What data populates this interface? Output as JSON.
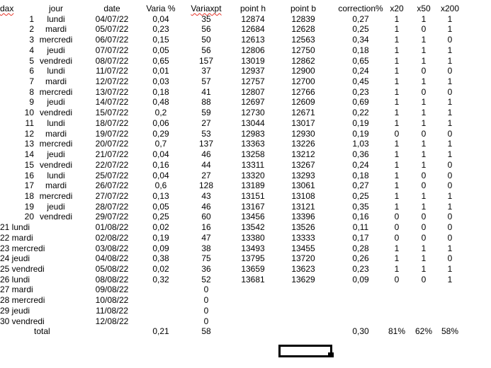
{
  "sheet": {
    "headers": [
      {
        "label": "dax",
        "misspelled": true
      },
      {
        "label": "jour",
        "misspelled": false
      },
      {
        "label": "date",
        "misspelled": false
      },
      {
        "label": "Varia %",
        "misspelled": false
      },
      {
        "label": "Variaxpt",
        "misspelled": true
      },
      {
        "label": "point h",
        "misspelled": false
      },
      {
        "label": "point b",
        "misspelled": false
      },
      {
        "label": "correction%",
        "misspelled": false
      },
      {
        "label": "x20",
        "misspelled": false
      },
      {
        "label": "x50",
        "misspelled": false
      },
      {
        "label": "x200",
        "misspelled": false
      }
    ],
    "rows": [
      {
        "num": "1",
        "jour": "lundi",
        "date": "04/07/22",
        "varia": "0,04",
        "variaxpt": "35",
        "point_h": "12874",
        "point_b": "12839",
        "correction": "0,27",
        "x20": "1",
        "x50": "1",
        "x200": "1",
        "merged": false
      },
      {
        "num": "2",
        "jour": "mardi",
        "date": "05/07/22",
        "varia": "0,23",
        "variaxpt": "56",
        "point_h": "12684",
        "point_b": "12628",
        "correction": "0,25",
        "x20": "1",
        "x50": "0",
        "x200": "1",
        "merged": false
      },
      {
        "num": "3",
        "jour": "mercredi",
        "date": "06/07/22",
        "varia": "0,15",
        "variaxpt": "50",
        "point_h": "12613",
        "point_b": "12563",
        "correction": "0,34",
        "x20": "1",
        "x50": "1",
        "x200": "0",
        "merged": false
      },
      {
        "num": "4",
        "jour": "jeudi",
        "date": "07/07/22",
        "varia": "0,05",
        "variaxpt": "56",
        "point_h": "12806",
        "point_b": "12750",
        "correction": "0,18",
        "x20": "1",
        "x50": "1",
        "x200": "1",
        "merged": false
      },
      {
        "num": "5",
        "jour": "vendredi",
        "date": "08/07/22",
        "varia": "0,65",
        "variaxpt": "157",
        "point_h": "13019",
        "point_b": "12862",
        "correction": "0,65",
        "x20": "1",
        "x50": "1",
        "x200": "1",
        "merged": false
      },
      {
        "num": "6",
        "jour": "lundi",
        "date": "11/07/22",
        "varia": "0,01",
        "variaxpt": "37",
        "point_h": "12937",
        "point_b": "12900",
        "correction": "0,24",
        "x20": "1",
        "x50": "0",
        "x200": "0",
        "merged": false
      },
      {
        "num": "7",
        "jour": "mardi",
        "date": "12/07/22",
        "varia": "0,03",
        "variaxpt": "57",
        "point_h": "12757",
        "point_b": "12700",
        "correction": "0,45",
        "x20": "1",
        "x50": "1",
        "x200": "1",
        "merged": false
      },
      {
        "num": "8",
        "jour": "mercredi",
        "date": "13/07/22",
        "varia": "0,18",
        "variaxpt": "41",
        "point_h": "12807",
        "point_b": "12766",
        "correction": "0,23",
        "x20": "1",
        "x50": "0",
        "x200": "0",
        "merged": false
      },
      {
        "num": "9",
        "jour": "jeudi",
        "date": "14/07/22",
        "varia": "0,48",
        "variaxpt": "88",
        "point_h": "12697",
        "point_b": "12609",
        "correction": "0,69",
        "x20": "1",
        "x50": "1",
        "x200": "1",
        "merged": false
      },
      {
        "num": "10",
        "jour": "vendredi",
        "date": "15/07/22",
        "varia": "0,2",
        "variaxpt": "59",
        "point_h": "12730",
        "point_b": "12671",
        "correction": "0,22",
        "x20": "1",
        "x50": "1",
        "x200": "1",
        "merged": false
      },
      {
        "num": "11",
        "jour": "lundi",
        "date": "18/07/22",
        "varia": "0,06",
        "variaxpt": "27",
        "point_h": "13044",
        "point_b": "13017",
        "correction": "0,19",
        "x20": "1",
        "x50": "1",
        "x200": "1",
        "merged": false
      },
      {
        "num": "12",
        "jour": "mardi",
        "date": "19/07/22",
        "varia": "0,29",
        "variaxpt": "53",
        "point_h": "12983",
        "point_b": "12930",
        "correction": "0,19",
        "x20": "0",
        "x50": "0",
        "x200": "0",
        "merged": false
      },
      {
        "num": "13",
        "jour": "mercredi",
        "date": "20/07/22",
        "varia": "0,7",
        "variaxpt": "137",
        "point_h": "13363",
        "point_b": "13226",
        "correction": "1,03",
        "x20": "1",
        "x50": "1",
        "x200": "1",
        "merged": false
      },
      {
        "num": "14",
        "jour": "jeudi",
        "date": "21/07/22",
        "varia": "0,04",
        "variaxpt": "46",
        "point_h": "13258",
        "point_b": "13212",
        "correction": "0,36",
        "x20": "1",
        "x50": "1",
        "x200": "1",
        "merged": false
      },
      {
        "num": "15",
        "jour": "vendredi",
        "date": "22/07/22",
        "varia": "0,16",
        "variaxpt": "44",
        "point_h": "13311",
        "point_b": "13267",
        "correction": "0,24",
        "x20": "1",
        "x50": "1",
        "x200": "0",
        "merged": false
      },
      {
        "num": "16",
        "jour": "lundi",
        "date": "25/07/22",
        "varia": "0,04",
        "variaxpt": "27",
        "point_h": "13320",
        "point_b": "13293",
        "correction": "0,18",
        "x20": "1",
        "x50": "0",
        "x200": "0",
        "merged": false
      },
      {
        "num": "17",
        "jour": "mardi",
        "date": "26/07/22",
        "varia": "0,6",
        "variaxpt": "128",
        "point_h": "13189",
        "point_b": "13061",
        "correction": "0,27",
        "x20": "1",
        "x50": "0",
        "x200": "0",
        "merged": false
      },
      {
        "num": "18",
        "jour": "mercredi",
        "date": "27/07/22",
        "varia": "0,13",
        "variaxpt": "43",
        "point_h": "13151",
        "point_b": "13108",
        "correction": "0,25",
        "x20": "1",
        "x50": "1",
        "x200": "1",
        "merged": false
      },
      {
        "num": "19",
        "jour": "jeudi",
        "date": "28/07/22",
        "varia": "0,05",
        "variaxpt": "46",
        "point_h": "13167",
        "point_b": "13121",
        "correction": "0,35",
        "x20": "1",
        "x50": "1",
        "x200": "1",
        "merged": false
      },
      {
        "num": "20",
        "jour": "vendredi",
        "date": "29/07/22",
        "varia": "0,25",
        "variaxpt": "60",
        "point_h": "13456",
        "point_b": "13396",
        "correction": "0,16",
        "x20": "0",
        "x50": "0",
        "x200": "0",
        "merged": false
      },
      {
        "num": "21",
        "jour": "lundi",
        "date": "01/08/22",
        "varia": "0,02",
        "variaxpt": "16",
        "point_h": "13542",
        "point_b": "13526",
        "correction": "0,11",
        "x20": "0",
        "x50": "0",
        "x200": "0",
        "merged": true
      },
      {
        "num": "22",
        "jour": "mardi",
        "date": "02/08/22",
        "varia": "0,19",
        "variaxpt": "47",
        "point_h": "13380",
        "point_b": "13333",
        "correction": "0,17",
        "x20": "0",
        "x50": "0",
        "x200": "0",
        "merged": true
      },
      {
        "num": "23",
        "jour": "mercredi",
        "date": "03/08/22",
        "varia": "0,09",
        "variaxpt": "38",
        "point_h": "13493",
        "point_b": "13455",
        "correction": "0,28",
        "x20": "1",
        "x50": "1",
        "x200": "1",
        "merged": true
      },
      {
        "num": "24",
        "jour": "jeudi",
        "date": "04/08/22",
        "varia": "0,38",
        "variaxpt": "75",
        "point_h": "13795",
        "point_b": "13720",
        "correction": "0,26",
        "x20": "1",
        "x50": "1",
        "x200": "0",
        "merged": true
      },
      {
        "num": "25",
        "jour": "vendredi",
        "date": "05/08/22",
        "varia": "0,02",
        "variaxpt": "36",
        "point_h": "13659",
        "point_b": "13623",
        "correction": "0,23",
        "x20": "1",
        "x50": "1",
        "x200": "1",
        "merged": true
      },
      {
        "num": "26",
        "jour": "lundi",
        "date": "08/08/22",
        "varia": "0,32",
        "variaxpt": "52",
        "point_h": "13681",
        "point_b": "13629",
        "correction": "0,09",
        "x20": "0",
        "x50": "0",
        "x200": "1",
        "merged": true
      },
      {
        "num": "27",
        "jour": "mardi",
        "date": "09/08/22",
        "varia": "",
        "variaxpt": "0",
        "point_h": "",
        "point_b": "",
        "correction": "",
        "x20": "",
        "x50": "",
        "x200": "",
        "merged": true
      },
      {
        "num": "28",
        "jour": "mercredi",
        "date": "10/08/22",
        "varia": "",
        "variaxpt": "0",
        "point_h": "",
        "point_b": "",
        "correction": "",
        "x20": "",
        "x50": "",
        "x200": "",
        "merged": true
      },
      {
        "num": "29",
        "jour": "jeudi",
        "date": "11/08/22",
        "varia": "",
        "variaxpt": "0",
        "point_h": "",
        "point_b": "",
        "correction": "",
        "x20": "",
        "x50": "",
        "x200": "",
        "merged": true
      },
      {
        "num": "30",
        "jour": "vendredi",
        "date": "12/08/22",
        "varia": "",
        "variaxpt": "0",
        "point_h": "",
        "point_b": "",
        "correction": "",
        "x20": "",
        "x50": "",
        "x200": "",
        "merged": true
      }
    ],
    "total_row": {
      "label": "total",
      "varia": "0,21",
      "variaxpt": "58",
      "correction": "0,30",
      "x20": "81%",
      "x50": "62%",
      "x200": "58%"
    },
    "selected_cell_value": ""
  },
  "colors": {
    "text": "#000000",
    "spellcheck_underline": "#e53126",
    "selection_border": "#000000",
    "background": "#ffffff"
  }
}
